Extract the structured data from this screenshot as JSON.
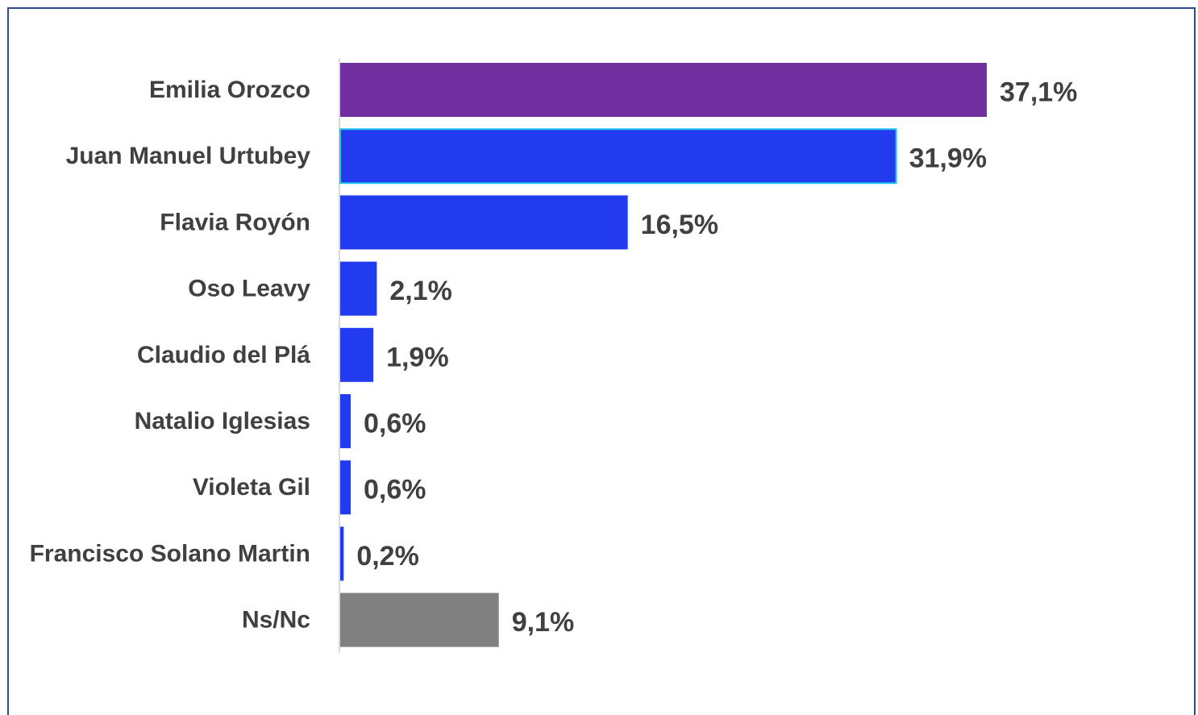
{
  "chart_data": {
    "type": "bar",
    "orientation": "horizontal",
    "categories": [
      "Emilia Orozco",
      "Juan Manuel Urtubey",
      "Flavia Royón",
      "Oso Leavy",
      "Claudio del Plá",
      "Natalio Iglesias",
      "Violeta Gil",
      "Francisco Solano Martin",
      "Ns/Nc"
    ],
    "values": [
      37.1,
      31.9,
      16.5,
      2.1,
      1.9,
      0.6,
      0.6,
      0.2,
      9.1
    ],
    "value_labels": [
      "37,1%",
      "31,9%",
      "16,5%",
      "2,1%",
      "1,9%",
      "0,6%",
      "0,6%",
      "0,2%",
      "9,1%"
    ],
    "bar_colors": [
      "#7030a0",
      "#223bee",
      "#223bee",
      "#223bee",
      "#223bee",
      "#223bee",
      "#223bee",
      "#223bee",
      "#808080"
    ],
    "highlight_outline_color": "#22c3f0",
    "highlighted_bar": "Juan Manuel Urtubey",
    "title": "",
    "xlabel": "",
    "ylabel": "",
    "xlim": [
      0,
      37.1
    ],
    "grid": false,
    "legend": "none"
  }
}
